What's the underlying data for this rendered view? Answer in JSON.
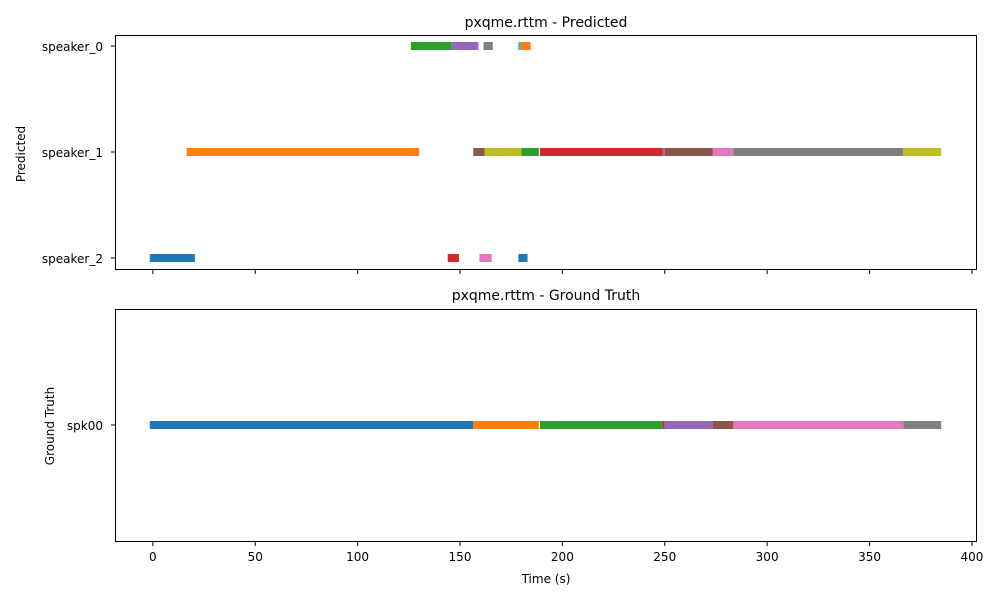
{
  "chart_data": [
    {
      "type": "timeline",
      "title": "pxqme.rttm - Predicted",
      "ylabel": "Predicted",
      "xlabel": "",
      "xlim": [
        -18,
        402
      ],
      "xticks": [
        0,
        50,
        100,
        150,
        200,
        250,
        300,
        350,
        400
      ],
      "show_xtick_labels": false,
      "rows": [
        "speaker_0",
        "speaker_1",
        "speaker_2"
      ],
      "segments": [
        {
          "row": "speaker_2",
          "start": -1.5,
          "end": 20.5,
          "color": "#1f77b4"
        },
        {
          "row": "speaker_1",
          "start": 16.5,
          "end": 130.0,
          "color": "#ff7f0e"
        },
        {
          "row": "speaker_0",
          "start": 126.0,
          "end": 146.0,
          "color": "#2ca02c"
        },
        {
          "row": "speaker_2",
          "start": 144.0,
          "end": 149.5,
          "color": "#d62728"
        },
        {
          "row": "speaker_0",
          "start": 146.0,
          "end": 159.0,
          "color": "#9467bd"
        },
        {
          "row": "speaker_1",
          "start": 156.5,
          "end": 162.0,
          "color": "#8c564b"
        },
        {
          "row": "speaker_2",
          "start": 159.5,
          "end": 165.5,
          "color": "#e377c2"
        },
        {
          "row": "speaker_0",
          "start": 161.5,
          "end": 166.0,
          "color": "#7f7f7f"
        },
        {
          "row": "speaker_1",
          "start": 162.0,
          "end": 180.0,
          "color": "#bcbd22"
        },
        {
          "row": "speaker_1",
          "start": 180.0,
          "end": 188.5,
          "color": "#2ca02c"
        },
        {
          "row": "speaker_0",
          "start": 178.5,
          "end": 179.5,
          "color": "#17becf"
        },
        {
          "row": "speaker_2",
          "start": 178.5,
          "end": 183.0,
          "color": "#1f77b4"
        },
        {
          "row": "speaker_0",
          "start": 179.5,
          "end": 184.5,
          "color": "#ff7f0e"
        },
        {
          "row": "speaker_1",
          "start": 189.0,
          "end": 249.0,
          "color": "#d62728"
        },
        {
          "row": "speaker_1",
          "start": 249.0,
          "end": 250.0,
          "color": "#9467bd"
        },
        {
          "row": "speaker_1",
          "start": 250.0,
          "end": 273.5,
          "color": "#8c564b"
        },
        {
          "row": "speaker_1",
          "start": 273.5,
          "end": 283.5,
          "color": "#e377c2"
        },
        {
          "row": "speaker_1",
          "start": 283.5,
          "end": 366.5,
          "color": "#7f7f7f"
        },
        {
          "row": "speaker_1",
          "start": 366.5,
          "end": 385.0,
          "color": "#bcbd22"
        }
      ]
    },
    {
      "type": "timeline",
      "title": "pxqme.rttm - Ground Truth",
      "ylabel": "Ground Truth",
      "xlabel": "Time (s)",
      "xlim": [
        -18,
        402
      ],
      "xticks": [
        0,
        50,
        100,
        150,
        200,
        250,
        300,
        350,
        400
      ],
      "show_xtick_labels": true,
      "rows": [
        "spk00"
      ],
      "segments": [
        {
          "row": "spk00",
          "start": -1.5,
          "end": 156.5,
          "color": "#1f77b4"
        },
        {
          "row": "spk00",
          "start": 156.5,
          "end": 188.5,
          "color": "#ff7f0e"
        },
        {
          "row": "spk00",
          "start": 189.0,
          "end": 249.0,
          "color": "#2ca02c"
        },
        {
          "row": "spk00",
          "start": 249.0,
          "end": 250.0,
          "color": "#d62728"
        },
        {
          "row": "spk00",
          "start": 250.0,
          "end": 273.5,
          "color": "#9467bd"
        },
        {
          "row": "spk00",
          "start": 273.5,
          "end": 283.5,
          "color": "#8c564b"
        },
        {
          "row": "spk00",
          "start": 283.5,
          "end": 366.5,
          "color": "#e377c2"
        },
        {
          "row": "spk00",
          "start": 366.5,
          "end": 385.0,
          "color": "#7f7f7f"
        }
      ]
    }
  ]
}
